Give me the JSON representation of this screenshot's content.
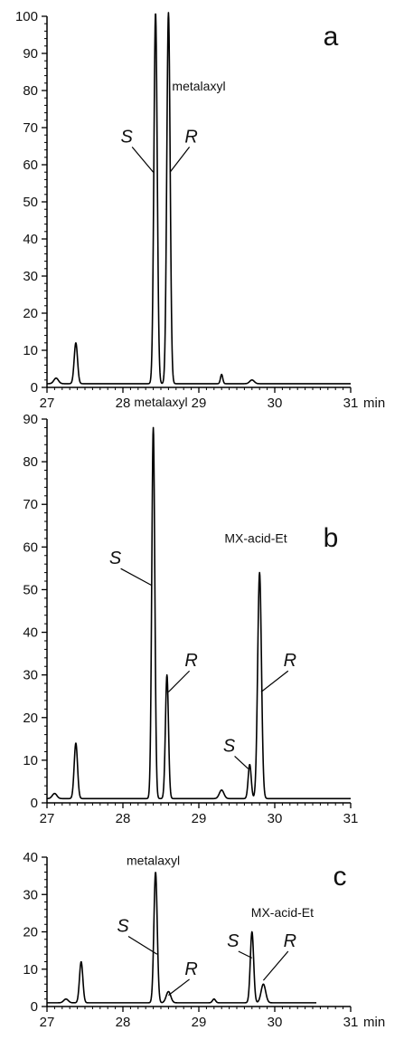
{
  "chart_data": [
    {
      "panel": "a",
      "type": "line",
      "x_unit": "min",
      "xlim": [
        27,
        31
      ],
      "ylim": [
        0,
        100
      ],
      "x_ticks": [
        27,
        28,
        29,
        30,
        31
      ],
      "y_ticks": [
        0,
        10,
        20,
        30,
        40,
        50,
        60,
        70,
        80,
        90,
        100
      ],
      "series": [
        {
          "baseline": 1,
          "peaks": [
            {
              "t": 27.12,
              "h": 1.5,
              "w": 0.03
            },
            {
              "t": 27.38,
              "h": 11,
              "w": 0.022
            },
            {
              "t": 28.43,
              "h": 100,
              "w": 0.022
            },
            {
              "t": 28.6,
              "h": 100,
              "w": 0.022
            },
            {
              "t": 29.3,
              "h": 2.5,
              "w": 0.015
            },
            {
              "t": 29.7,
              "h": 1,
              "w": 0.03
            }
          ]
        }
      ],
      "annotations": [
        {
          "text": "metalaxyl",
          "kind": "compound",
          "x": 29.0,
          "y": 80
        },
        {
          "text": "S",
          "kind": "enantiomer",
          "x": 28.05,
          "y": 66,
          "tx": 28.4,
          "ty": 58
        },
        {
          "text": "R",
          "kind": "enantiomer",
          "x": 28.9,
          "y": 66,
          "tx": 28.62,
          "ty": 58
        }
      ]
    },
    {
      "panel": "b",
      "type": "line",
      "x_unit": "",
      "xlim": [
        27,
        31
      ],
      "ylim": [
        0,
        90
      ],
      "x_ticks": [
        27,
        28,
        29,
        30,
        31
      ],
      "y_ticks": [
        0,
        10,
        20,
        30,
        40,
        50,
        60,
        70,
        80,
        90
      ],
      "series": [
        {
          "baseline": 1,
          "peaks": [
            {
              "t": 27.1,
              "h": 1.2,
              "w": 0.03
            },
            {
              "t": 27.38,
              "h": 13,
              "w": 0.022
            },
            {
              "t": 28.4,
              "h": 87,
              "w": 0.02
            },
            {
              "t": 28.58,
              "h": 29,
              "w": 0.02
            },
            {
              "t": 29.3,
              "h": 2,
              "w": 0.03
            },
            {
              "t": 29.67,
              "h": 8,
              "w": 0.02
            },
            {
              "t": 29.8,
              "h": 53,
              "w": 0.025
            }
          ]
        }
      ],
      "annotations": [
        {
          "text": "metalaxyl",
          "kind": "compound",
          "x": 28.5,
          "y": 93
        },
        {
          "text": "MX-acid-Et",
          "kind": "compound",
          "x": 29.75,
          "y": 61
        },
        {
          "text": "S",
          "kind": "enantiomer",
          "x": 27.9,
          "y": 56,
          "tx": 28.38,
          "ty": 51
        },
        {
          "text": "R",
          "kind": "enantiomer",
          "x": 28.9,
          "y": 32,
          "tx": 28.6,
          "ty": 26
        },
        {
          "text": "S",
          "kind": "enantiomer",
          "x": 29.4,
          "y": 12,
          "tx": 29.65,
          "ty": 8
        },
        {
          "text": "R",
          "kind": "enantiomer",
          "x": 30.2,
          "y": 32,
          "tx": 29.82,
          "ty": 26
        }
      ]
    },
    {
      "panel": "c",
      "type": "line",
      "x_unit": "min",
      "xlim": [
        27,
        31
      ],
      "ylim": [
        0,
        40
      ],
      "x_ticks": [
        27,
        28,
        29,
        30,
        31
      ],
      "y_ticks": [
        0,
        10,
        20,
        30,
        40
      ],
      "series": [
        {
          "baseline": 1,
          "peaks": [
            {
              "t": 27.25,
              "h": 1,
              "w": 0.03
            },
            {
              "t": 27.45,
              "h": 11,
              "w": 0.022
            },
            {
              "t": 28.43,
              "h": 35,
              "w": 0.022
            },
            {
              "t": 28.6,
              "h": 3,
              "w": 0.03
            },
            {
              "t": 29.2,
              "h": 1,
              "w": 0.02
            },
            {
              "t": 29.7,
              "h": 19,
              "w": 0.022
            },
            {
              "t": 29.85,
              "h": 5,
              "w": 0.03
            }
          ]
        }
      ],
      "annotations": [
        {
          "text": "metalaxyl",
          "kind": "compound",
          "x": 28.4,
          "y": 38
        },
        {
          "text": "MX-acid-Et",
          "kind": "compound",
          "x": 30.1,
          "y": 24
        },
        {
          "text": "S",
          "kind": "enantiomer",
          "x": 28.0,
          "y": 20,
          "tx": 28.45,
          "ty": 14
        },
        {
          "text": "R",
          "kind": "enantiomer",
          "x": 28.9,
          "y": 8.5,
          "tx": 28.6,
          "ty": 3
        },
        {
          "text": "S",
          "kind": "enantiomer",
          "x": 29.45,
          "y": 16,
          "tx": 29.7,
          "ty": 13
        },
        {
          "text": "R",
          "kind": "enantiomer",
          "x": 30.2,
          "y": 16,
          "tx": 29.85,
          "ty": 7
        }
      ]
    }
  ]
}
